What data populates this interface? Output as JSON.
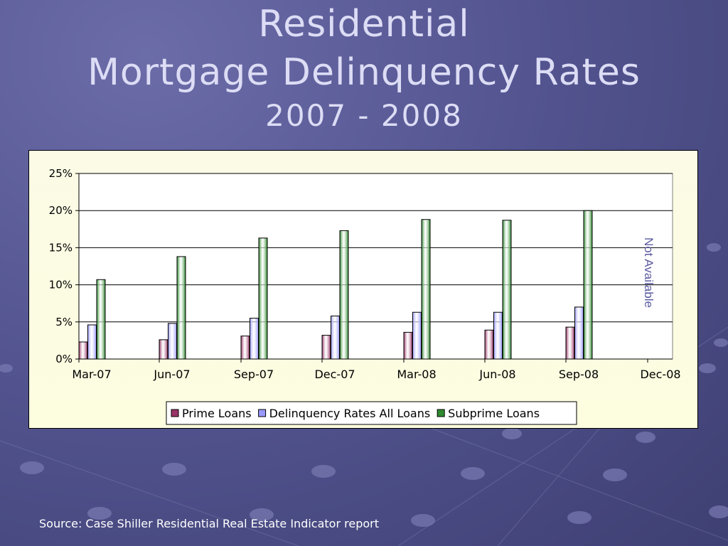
{
  "slide": {
    "title_line1": "Residential",
    "title_line2": "Mortgage Delinquency Rates",
    "title_line3": "2007 - 2008",
    "source": "Source: Case Shiller Residential Real Estate Indicator report"
  },
  "chart_data": {
    "type": "bar",
    "categories": [
      "Mar-07",
      "Jun-07",
      "Sep-07",
      "Dec-07",
      "Mar-08",
      "Jun-08",
      "Sep-08",
      "Dec-08"
    ],
    "series": [
      {
        "name": "Prime Loans",
        "color": "#993366",
        "values": [
          2.3,
          2.6,
          3.1,
          3.2,
          3.6,
          3.9,
          4.3,
          null
        ]
      },
      {
        "name": "Delinquency Rates All Loans",
        "color": "#9999ff",
        "values": [
          4.6,
          4.8,
          5.5,
          5.8,
          6.3,
          6.3,
          7.0,
          null
        ]
      },
      {
        "name": "Subprime Loans",
        "color": "#2e8b2e",
        "values": [
          10.7,
          13.8,
          16.3,
          17.3,
          18.8,
          18.7,
          20.0,
          null
        ]
      }
    ],
    "ylim": [
      0,
      25
    ],
    "yticks": [
      "0%",
      "5%",
      "10%",
      "15%",
      "20%",
      "25%"
    ],
    "grid": true,
    "legend_position": "bottom",
    "annotation": "Not Available"
  }
}
